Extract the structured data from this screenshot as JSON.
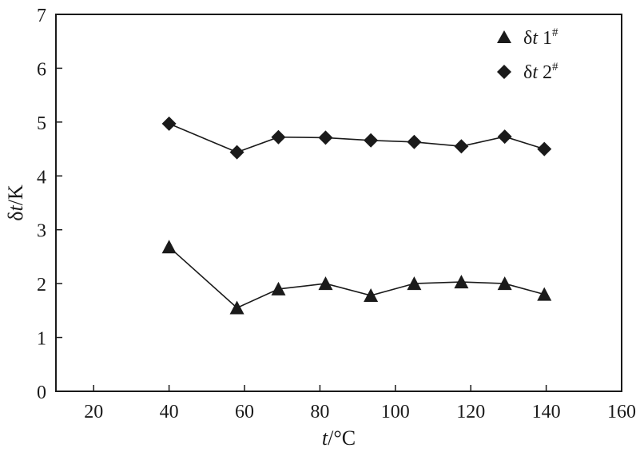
{
  "chart_data": {
    "type": "line",
    "xlabel": {
      "italic": "t",
      "rest": "/°C"
    },
    "ylabel": {
      "prefix": "δ",
      "italic": "t",
      "rest": "/K"
    },
    "xlim": [
      10,
      160
    ],
    "ylim": [
      0,
      7
    ],
    "xticks": [
      20,
      40,
      60,
      80,
      100,
      120,
      140,
      160
    ],
    "yticks": [
      0,
      1,
      2,
      3,
      4,
      5,
      6,
      7
    ],
    "grid": false,
    "legend_position": "top-right",
    "x": [
      40,
      58,
      69,
      81.5,
      93.5,
      105,
      117.5,
      129,
      139.5
    ],
    "series": [
      {
        "name": "δt 1#",
        "label_parts": {
          "prefix": "δ",
          "italic": "t",
          "num": " 1",
          "sup": "#"
        },
        "marker": "triangle",
        "color": "#1a1a1a",
        "values": [
          2.68,
          1.55,
          1.9,
          2.0,
          1.78,
          2.0,
          2.03,
          2.0,
          1.8
        ]
      },
      {
        "name": "δt 2#",
        "label_parts": {
          "prefix": "δ",
          "italic": "t",
          "num": " 2",
          "sup": "#"
        },
        "marker": "diamond",
        "color": "#1a1a1a",
        "values": [
          4.97,
          4.44,
          4.72,
          4.71,
          4.66,
          4.63,
          4.55,
          4.73,
          4.5
        ]
      }
    ]
  }
}
